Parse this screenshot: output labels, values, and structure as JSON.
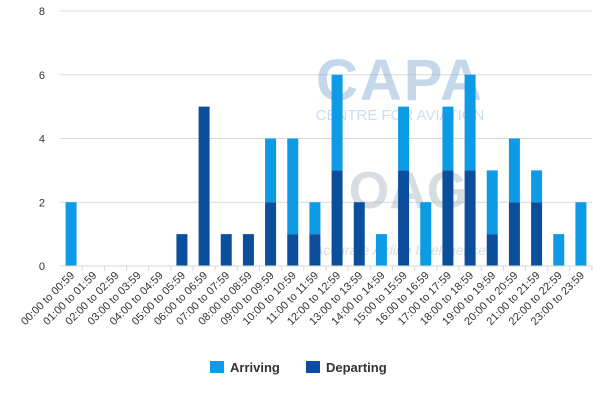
{
  "chart_data": {
    "type": "bar",
    "stacked": true,
    "categories": [
      "00:00 to 00:59",
      "01:00 to 01:59",
      "02:00 to 02:59",
      "03:00 to 03:59",
      "04:00 to 04:59",
      "05:00 to 05:59",
      "06:00 to 06:59",
      "07:00 to 07:59",
      "08:00 to 08:59",
      "09:00 to 09:59",
      "10:00 to 10:59",
      "11:00 to 11:59",
      "12:00 to 12:59",
      "13:00 to 13:59",
      "14:00 to 14:59",
      "15:00 to 15:59",
      "16:00 to 16:59",
      "17:00 to 17:59",
      "18:00 to 18:59",
      "19:00 to 19:59",
      "20:00 to 20:59",
      "21:00 to 21:59",
      "22:00 to 22:59",
      "23:00 to 23:59"
    ],
    "series": [
      {
        "name": "Departing",
        "color": "#0b4f9c",
        "values": [
          0,
          0,
          0,
          0,
          0,
          1,
          5,
          1,
          1,
          2,
          1,
          1,
          3,
          2,
          0,
          3,
          0,
          3,
          3,
          1,
          2,
          2,
          0,
          0
        ]
      },
      {
        "name": "Arriving",
        "color": "#0e9be6",
        "values": [
          2,
          0,
          0,
          0,
          0,
          0,
          0,
          0,
          0,
          2,
          3,
          1,
          3,
          0,
          1,
          2,
          2,
          2,
          3,
          2,
          2,
          1,
          1,
          2
        ]
      }
    ],
    "ylim": [
      0,
      8
    ],
    "yticks": [
      "0",
      "2",
      "4",
      "6",
      "8"
    ],
    "grid": true,
    "legend": {
      "placement": "bottom",
      "order": [
        "Arriving",
        "Departing"
      ]
    }
  },
  "watermark": {
    "capa_title": "CAPA",
    "capa_subtitle": "CENTRE FOR AVIATION",
    "oag_title": "OAG",
    "oag_subtitle": "Accurate Airline Intelligence"
  }
}
